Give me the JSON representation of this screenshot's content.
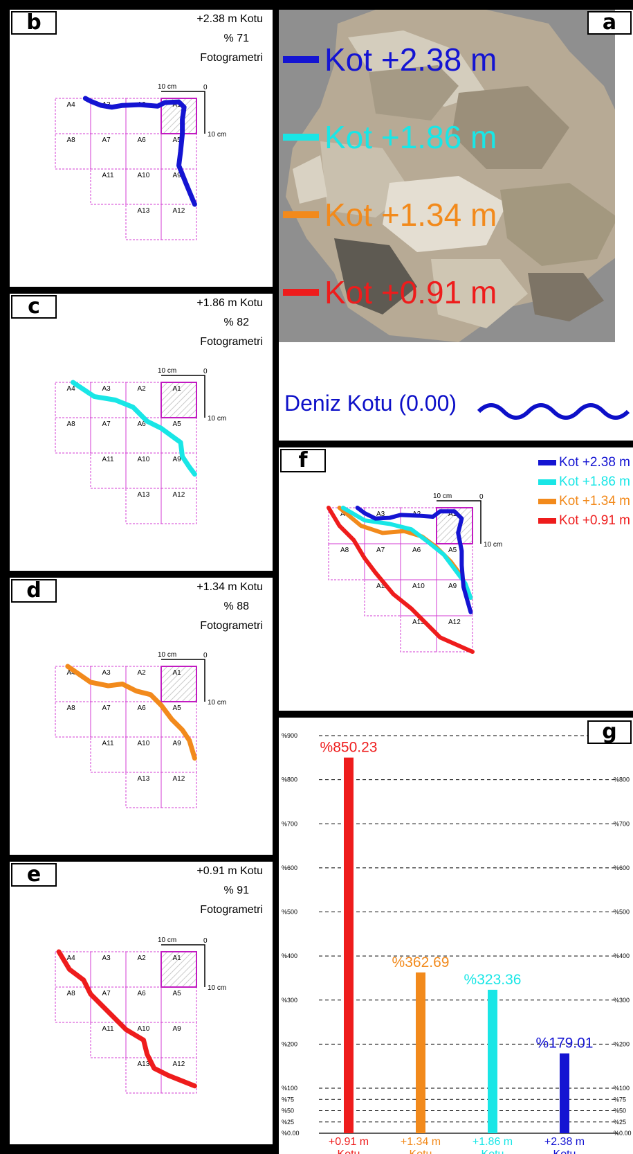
{
  "panels": {
    "b": {
      "label": "b",
      "level": "+2.38 m Kotu",
      "pct": "% 71",
      "method": "Fotogrametri",
      "color": "#1414d2"
    },
    "c": {
      "label": "c",
      "level": "+1.86 m Kotu",
      "pct": "% 82",
      "method": "Fotogrametri",
      "color": "#19e6e6"
    },
    "d": {
      "label": "d",
      "level": "+1.34 m Kotu",
      "pct": "% 88",
      "method": "Fotogrametri",
      "color": "#f28a1c"
    },
    "e": {
      "label": "e",
      "level": "+0.91 m Kotu",
      "pct": "% 91",
      "method": "Fotogrametri",
      "color": "#ee1c1c"
    }
  },
  "grid": {
    "cells": [
      "A1",
      "A2",
      "A3",
      "A4",
      "A5",
      "A6",
      "A7",
      "A8",
      "A9",
      "A10",
      "A11",
      "A12",
      "A13"
    ],
    "scale_label": "10 cm",
    "scale_zero": "0",
    "scale_side": "10 cm"
  },
  "panel_a": {
    "label": "a",
    "levels": [
      {
        "text": "Kot +2.38 m",
        "color": "#1414d2"
      },
      {
        "text": "Kot +1.86 m",
        "color": "#19e6e6"
      },
      {
        "text": "Kot +1.34 m",
        "color": "#f28a1c"
      },
      {
        "text": "Kot +0.91 m",
        "color": "#ee1c1c"
      }
    ],
    "sea_level": "Deniz Kotu (0.00)"
  },
  "panel_f": {
    "label": "f",
    "legend": [
      {
        "text": "Kot +2.38 m",
        "color": "#1414d2"
      },
      {
        "text": "Kot +1.86 m",
        "color": "#19e6e6"
      },
      {
        "text": "Kot +1.34 m",
        "color": "#f28a1c"
      },
      {
        "text": "Kot +0.91 m",
        "color": "#ee1c1c"
      }
    ]
  },
  "chart_data": {
    "type": "bar",
    "label": "g",
    "categories": [
      "+0.91 m Kotu",
      "+1.34 m Kotu",
      "+1.86 m Kotu",
      "+2.38 m Kotu"
    ],
    "category_lines": [
      [
        "+0.91 m",
        "Kotu"
      ],
      [
        "+1.34 m",
        "Kotu"
      ],
      [
        "+1.86 m",
        "Kotu"
      ],
      [
        "+2.38 m",
        "Kotu"
      ]
    ],
    "values": [
      850.23,
      362.69,
      323.36,
      179.01
    ],
    "value_labels": [
      "%850.23",
      "%362.69",
      "%323.36",
      "%179.01"
    ],
    "colors": [
      "#ee1c1c",
      "#f28a1c",
      "#19e6e6",
      "#1414d2"
    ],
    "ylim": [
      0,
      900
    ],
    "y_ticks": [
      0,
      25,
      50,
      75,
      100,
      200,
      300,
      400,
      500,
      600,
      700,
      800,
      900
    ],
    "y_tick_labels_left": [
      "%0.00",
      "%25",
      "%50",
      "%75",
      "%100",
      "%200",
      "%300",
      "%400",
      "%500",
      "%600",
      "%700",
      "%800",
      "%900"
    ],
    "y_tick_labels_right": [
      "%0.00",
      "%25",
      "%50",
      "%75",
      "%100",
      "%200",
      "%300",
      "%400",
      "%500",
      "%600",
      "%700",
      "%800"
    ],
    "grid": true
  }
}
